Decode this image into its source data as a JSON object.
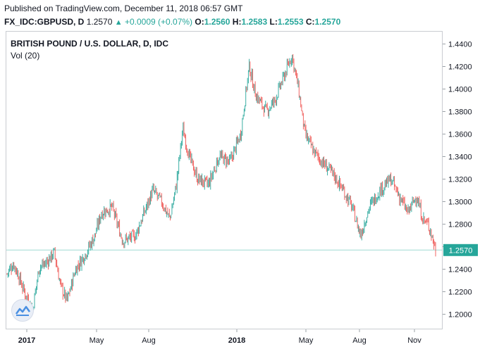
{
  "header": {
    "published": "Published on TradingView.com, December 11, 2018 06:57 GMT",
    "symbol": "FX_IDC:GBPUSD, D",
    "last": "1.2570",
    "change": "+0.0009 (+0.07%)",
    "o_label": "O:",
    "o_value": "1.2560",
    "h_label": "H:",
    "h_value": "1.2583",
    "l_label": "L:",
    "l_value": "1.2553",
    "c_label": "C:",
    "c_value": "1.2570"
  },
  "legend": {
    "title": "BRITISH POUND / U.S. DOLLAR, D, IDC",
    "volume": "Vol (20)"
  },
  "colors": {
    "up": "#26a69a",
    "down": "#ef5350",
    "last_badge": "#26a69a"
  },
  "icons": {
    "logo": "tradingview-logo-icon"
  },
  "chart_data": {
    "type": "candlestick",
    "instrument": "GBPUSD",
    "ylim": [
      1.19,
      1.45
    ],
    "yticks": [
      "1.4400",
      "1.4200",
      "1.4000",
      "1.3800",
      "1.3600",
      "1.3400",
      "1.3200",
      "1.3000",
      "1.2800",
      "1.2600",
      "1.2400",
      "1.2200",
      "1.2000"
    ],
    "xticks": [
      {
        "label": "2017",
        "bold": true
      },
      {
        "label": "May",
        "bold": false
      },
      {
        "label": "Aug",
        "bold": false
      },
      {
        "label": "2018",
        "bold": true
      },
      {
        "label": "May",
        "bold": false
      },
      {
        "label": "Aug",
        "bold": false
      },
      {
        "label": "Nov",
        "bold": false
      }
    ],
    "last_price": "1.2570",
    "price_path": [
      {
        "t": 0.0,
        "p": 1.236
      },
      {
        "t": 0.015,
        "p": 1.245
      },
      {
        "t": 0.025,
        "p": 1.236
      },
      {
        "t": 0.04,
        "p": 1.22
      },
      {
        "t": 0.06,
        "p": 1.205
      },
      {
        "t": 0.075,
        "p": 1.242
      },
      {
        "t": 0.09,
        "p": 1.245
      },
      {
        "t": 0.11,
        "p": 1.255
      },
      {
        "t": 0.125,
        "p": 1.225
      },
      {
        "t": 0.14,
        "p": 1.212
      },
      {
        "t": 0.16,
        "p": 1.24
      },
      {
        "t": 0.185,
        "p": 1.255
      },
      {
        "t": 0.205,
        "p": 1.27
      },
      {
        "t": 0.22,
        "p": 1.29
      },
      {
        "t": 0.245,
        "p": 1.295
      },
      {
        "t": 0.27,
        "p": 1.265
      },
      {
        "t": 0.3,
        "p": 1.27
      },
      {
        "t": 0.32,
        "p": 1.29
      },
      {
        "t": 0.34,
        "p": 1.31
      },
      {
        "t": 0.36,
        "p": 1.3
      },
      {
        "t": 0.38,
        "p": 1.285
      },
      {
        "t": 0.395,
        "p": 1.315
      },
      {
        "t": 0.41,
        "p": 1.365
      },
      {
        "t": 0.425,
        "p": 1.34
      },
      {
        "t": 0.445,
        "p": 1.32
      },
      {
        "t": 0.47,
        "p": 1.315
      },
      {
        "t": 0.495,
        "p": 1.34
      },
      {
        "t": 0.52,
        "p": 1.335
      },
      {
        "t": 0.545,
        "p": 1.36
      },
      {
        "t": 0.565,
        "p": 1.42
      },
      {
        "t": 0.58,
        "p": 1.395
      },
      {
        "t": 0.605,
        "p": 1.38
      },
      {
        "t": 0.625,
        "p": 1.39
      },
      {
        "t": 0.645,
        "p": 1.41
      },
      {
        "t": 0.665,
        "p": 1.43
      },
      {
        "t": 0.68,
        "p": 1.4
      },
      {
        "t": 0.695,
        "p": 1.36
      },
      {
        "t": 0.715,
        "p": 1.345
      },
      {
        "t": 0.735,
        "p": 1.335
      },
      {
        "t": 0.76,
        "p": 1.325
      },
      {
        "t": 0.785,
        "p": 1.31
      },
      {
        "t": 0.805,
        "p": 1.295
      },
      {
        "t": 0.825,
        "p": 1.27
      },
      {
        "t": 0.845,
        "p": 1.295
      },
      {
        "t": 0.87,
        "p": 1.31
      },
      {
        "t": 0.895,
        "p": 1.32
      },
      {
        "t": 0.915,
        "p": 1.305
      },
      {
        "t": 0.935,
        "p": 1.29
      },
      {
        "t": 0.955,
        "p": 1.305
      },
      {
        "t": 0.97,
        "p": 1.285
      },
      {
        "t": 0.985,
        "p": 1.278
      },
      {
        "t": 1.0,
        "p": 1.257
      }
    ]
  }
}
